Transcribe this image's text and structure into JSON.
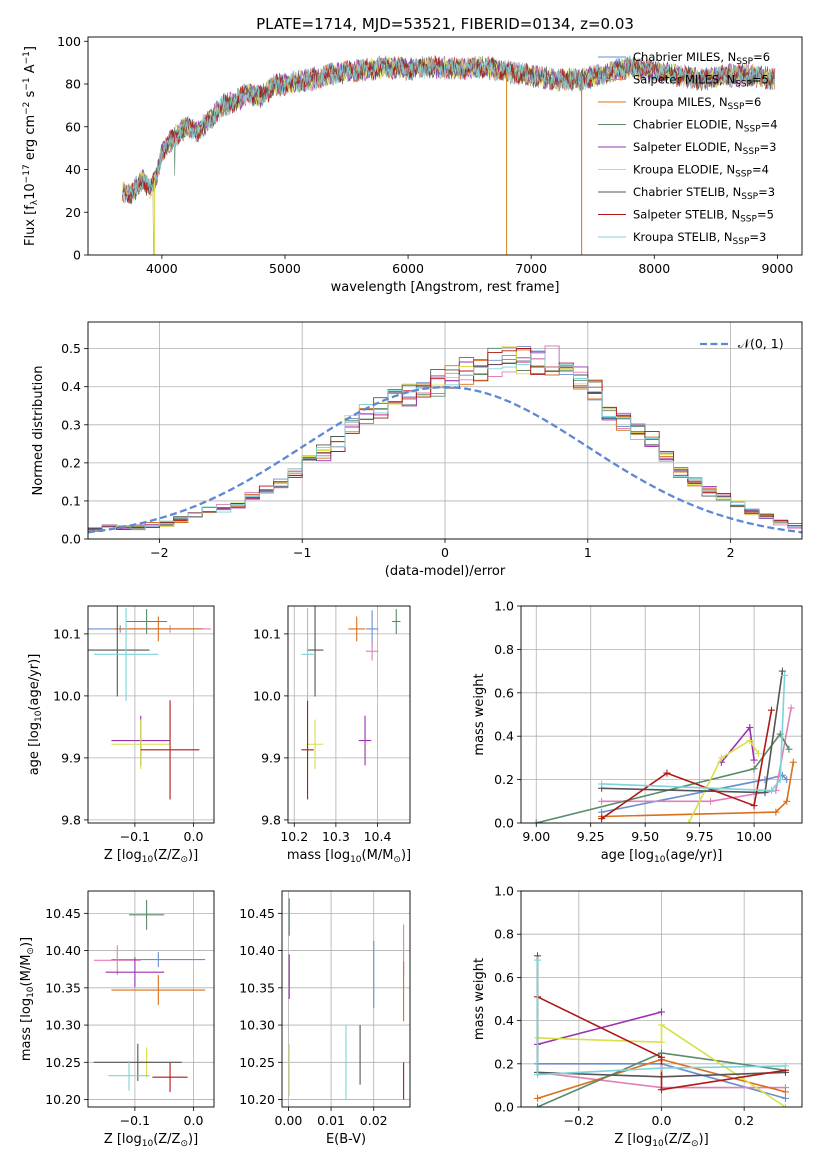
{
  "colors": {
    "chabrier_miles": "#6a8fd0",
    "salpeter_miles": "#e07fb8",
    "kroupa_miles": "#d9701e",
    "chabrier_elodie": "#5a8a6a",
    "salpeter_elodie": "#9b30b0",
    "kroupa_elodie": "#d8e04a",
    "chabrier_stelib": "#555555",
    "salpeter_stelib": "#b01818",
    "kroupa_stelib": "#7dd3d8",
    "gauss": "#5f87d4"
  },
  "chart_data": [
    {
      "id": "spectrum",
      "type": "line",
      "title": "PLATE=1714, MJD=53521, FIBERID=0134, z=0.03",
      "xlabel": "wavelength [Angstrom, rest frame]",
      "ylabel": "Flux [f",
      "ylabel_sub": "λ",
      "ylabel_mid": "10",
      "ylabel_sup1": "−17",
      "ylabel_mid2": " erg cm",
      "ylabel_sup2": "−2",
      "ylabel_mid3": " s",
      "ylabel_sup3": "−1",
      "ylabel_mid4": " A",
      "ylabel_sup4": "−1",
      "ylabel_end": "]",
      "xlim": [
        3400,
        9200
      ],
      "ylim": [
        0,
        102
      ],
      "xticks": [
        4000,
        5000,
        6000,
        7000,
        8000,
        9000
      ],
      "yticks": [
        0,
        20,
        40,
        60,
        80,
        100
      ],
      "envelope": {
        "x": [
          3680,
          3750,
          3850,
          3900,
          3950,
          4000,
          4100,
          4200,
          4300,
          4400,
          4500,
          4600,
          4700,
          4800,
          4900,
          5000,
          5200,
          5400,
          5600,
          5800,
          6000,
          6200,
          6400,
          6600,
          6800,
          7000,
          7200,
          7400,
          7600,
          7800,
          8000,
          8200,
          8400,
          8600,
          8800,
          8980
        ],
        "y": [
          30,
          28,
          36,
          30,
          35,
          48,
          55,
          60,
          58,
          64,
          70,
          72,
          76,
          74,
          79,
          80,
          82,
          85,
          86,
          88,
          87,
          88,
          87,
          88,
          86,
          84,
          82,
          82,
          85,
          88,
          86,
          84,
          82,
          84,
          84,
          82
        ]
      },
      "legend": [
        {
          "label": "Chabrier MILES, N",
          "color": "chabrier_miles",
          "n": "6"
        },
        {
          "label": "Salpeter MILES, N",
          "color": "salpeter_miles",
          "n": "5"
        },
        {
          "label": "Kroupa MILES, N",
          "color": "kroupa_miles",
          "n": "6"
        },
        {
          "label": "Chabrier ELODIE, N",
          "color": "chabrier_elodie",
          "n": "4"
        },
        {
          "label": "Salpeter ELODIE, N",
          "color": "salpeter_elodie",
          "n": "3"
        },
        {
          "label": "Kroupa ELODIE, N",
          "color": "kroupa_elodie",
          "n": "4"
        },
        {
          "label": "Chabrier STELIB, N",
          "color": "chabrier_stelib",
          "n": "3"
        },
        {
          "label": "Salpeter STELIB, N",
          "color": "salpeter_stelib",
          "n": "5"
        },
        {
          "label": "Kroupa STELIB, N",
          "color": "kroupa_stelib",
          "n": "3"
        }
      ],
      "legend_sub": "SSP",
      "legend_eq": "="
    },
    {
      "id": "residuals",
      "type": "histogram",
      "xlabel": "(data-model)/error",
      "ylabel": "Normed distribution",
      "xlim": [
        -2.5,
        2.5
      ],
      "ylim": [
        0,
        0.57
      ],
      "xticks": [
        -2,
        -1,
        0,
        1,
        2
      ],
      "yticks": [
        0.0,
        0.1,
        0.2,
        0.3,
        0.4,
        0.5
      ],
      "bin_width": 0.1,
      "bin_start": -2.5,
      "heights": [
        0.025,
        0.03,
        0.03,
        0.03,
        0.035,
        0.04,
        0.05,
        0.065,
        0.075,
        0.08,
        0.09,
        0.11,
        0.125,
        0.145,
        0.17,
        0.2,
        0.225,
        0.25,
        0.3,
        0.33,
        0.345,
        0.36,
        0.375,
        0.39,
        0.41,
        0.42,
        0.44,
        0.45,
        0.46,
        0.47,
        0.47,
        0.47,
        0.47,
        0.44,
        0.42,
        0.39,
        0.33,
        0.31,
        0.285,
        0.26,
        0.215,
        0.18,
        0.15,
        0.125,
        0.11,
        0.09,
        0.07,
        0.06,
        0.045,
        0.035
      ],
      "legend": "𝒩(0, 1)"
    },
    {
      "id": "age-vs-Z",
      "type": "errorbar",
      "xlabel": "Z [log",
      "xlabel_sub": "10",
      "xlabel_rest": "(Z/Z",
      "xlabel_sun": "⊙",
      "xlabel_end": ")]",
      "ylabel": "age  [log",
      "ylabel_sub": "10",
      "ylabel_rest": "(age/yr)]",
      "xlim": [
        -0.18,
        0.035
      ],
      "ylim": [
        9.795,
        10.145
      ],
      "xticks": [
        -0.1,
        0.0
      ],
      "yticks": [
        9.8,
        9.9,
        10.0,
        10.1
      ],
      "points": [
        {
          "x": -0.125,
          "y": 10.108,
          "xerr": 0.145,
          "yerr": 0.006,
          "color": "chabrier_miles"
        },
        {
          "x": -0.04,
          "y": 10.108,
          "xerr": 0.07,
          "yerr": 0.006,
          "color": "salpeter_miles"
        },
        {
          "x": -0.06,
          "y": 10.108,
          "xerr": 0.075,
          "yerr": 0.02,
          "color": "kroupa_miles"
        },
        {
          "x": -0.08,
          "y": 10.12,
          "xerr": 0.035,
          "yerr": 0.02,
          "color": "chabrier_elodie"
        },
        {
          "x": -0.09,
          "y": 9.928,
          "xerr": 0.05,
          "yerr": 0.04,
          "color": "salpeter_elodie"
        },
        {
          "x": -0.09,
          "y": 9.922,
          "xerr": 0.05,
          "yerr": 0.04,
          "color": "kroupa_elodie"
        },
        {
          "x": -0.13,
          "y": 10.074,
          "xerr": 0.055,
          "yerr": 0.075,
          "color": "chabrier_stelib"
        },
        {
          "x": -0.04,
          "y": 9.913,
          "xerr": 0.05,
          "yerr": 0.08,
          "color": "salpeter_stelib"
        },
        {
          "x": -0.115,
          "y": 10.067,
          "xerr": 0.055,
          "yerr": 0.075,
          "color": "kroupa_stelib"
        }
      ]
    },
    {
      "id": "age-vs-mass",
      "type": "errorbar",
      "xlabel": "mass [log",
      "xlabel_sub": "10",
      "xlabel_rest": "(M/M",
      "xlabel_sun": "⊙",
      "xlabel_end": ")]",
      "xlim": [
        10.185,
        10.478
      ],
      "ylim": [
        9.795,
        10.145
      ],
      "xticks": [
        10.2,
        10.3,
        10.4
      ],
      "yticks": [
        9.8,
        9.9,
        10.0,
        10.1
      ],
      "points": [
        {
          "x": 10.387,
          "y": 10.108,
          "xerr": 0.015,
          "yerr": 0.03,
          "color": "chabrier_miles"
        },
        {
          "x": 10.387,
          "y": 10.072,
          "xerr": 0.015,
          "yerr": 0.015,
          "color": "salpeter_miles"
        },
        {
          "x": 10.35,
          "y": 10.108,
          "xerr": 0.02,
          "yerr": 0.02,
          "color": "kroupa_miles"
        },
        {
          "x": 10.445,
          "y": 10.12,
          "xerr": 0.01,
          "yerr": 0.02,
          "color": "chabrier_elodie"
        },
        {
          "x": 10.37,
          "y": 9.928,
          "xerr": 0.015,
          "yerr": 0.04,
          "color": "salpeter_elodie"
        },
        {
          "x": 10.25,
          "y": 9.922,
          "xerr": 0.02,
          "yerr": 0.04,
          "color": "kroupa_elodie"
        },
        {
          "x": 10.25,
          "y": 10.074,
          "xerr": 0.02,
          "yerr": 0.075,
          "color": "chabrier_stelib"
        },
        {
          "x": 10.232,
          "y": 9.913,
          "xerr": 0.015,
          "yerr": 0.08,
          "color": "salpeter_stelib"
        },
        {
          "x": 10.232,
          "y": 10.067,
          "xerr": 0.015,
          "yerr": 0.075,
          "color": "kroupa_stelib"
        }
      ]
    },
    {
      "id": "weight-vs-age",
      "type": "line",
      "xlabel": "age  [log",
      "xlabel_sub": "10",
      "xlabel_rest": "(age/yr)]",
      "ylabel": "mass weight",
      "xlim": [
        8.93,
        10.22
      ],
      "ylim": [
        0,
        1
      ],
      "xticks": [
        9.0,
        9.25,
        9.5,
        9.75,
        10.0
      ],
      "yticks": [
        0.0,
        0.2,
        0.4,
        0.6,
        0.8,
        1.0
      ],
      "series": [
        {
          "color": "chabrier_miles",
          "x": [
            9.3,
            10.05,
            10.13,
            10.15
          ],
          "y": [
            0.05,
            0.2,
            0.22,
            0.2
          ]
        },
        {
          "color": "salpeter_miles",
          "x": [
            9.3,
            9.8,
            10.1,
            10.17
          ],
          "y": [
            0.1,
            0.1,
            0.15,
            0.53
          ]
        },
        {
          "color": "kroupa_miles",
          "x": [
            9.3,
            10.1,
            10.15,
            10.18
          ],
          "y": [
            0.03,
            0.05,
            0.1,
            0.28
          ]
        },
        {
          "color": "chabrier_elodie",
          "x": [
            9.0,
            10.0,
            10.12,
            10.16
          ],
          "y": [
            0.0,
            0.25,
            0.41,
            0.34
          ]
        },
        {
          "color": "salpeter_elodie",
          "x": [
            9.85,
            9.98,
            10.0
          ],
          "y": [
            0.28,
            0.44,
            0.29
          ]
        },
        {
          "color": "kroupa_elodie",
          "x": [
            9.7,
            9.85,
            9.98,
            10.02
          ],
          "y": [
            0.0,
            0.3,
            0.38,
            0.32
          ]
        },
        {
          "color": "chabrier_stelib",
          "x": [
            9.3,
            10.05,
            10.13
          ],
          "y": [
            0.16,
            0.14,
            0.7
          ]
        },
        {
          "color": "salpeter_stelib",
          "x": [
            9.3,
            9.6,
            10.0,
            10.08
          ],
          "y": [
            0.02,
            0.23,
            0.08,
            0.52
          ]
        },
        {
          "color": "kroupa_stelib",
          "x": [
            9.3,
            10.08,
            10.12,
            10.14
          ],
          "y": [
            0.18,
            0.15,
            0.2,
            0.68
          ]
        }
      ]
    },
    {
      "id": "mass-vs-Z",
      "type": "errorbar",
      "xlabel": "Z [log",
      "xlabel_sub": "10",
      "xlabel_rest": "(Z/Z",
      "xlabel_sun": "⊙",
      "xlabel_end": ")]",
      "ylabel": "mass [log",
      "ylabel_sub": "10",
      "ylabel_rest": "(M/M",
      "ylabel_sun": "⊙",
      "ylabel_end": ")]",
      "xlim": [
        -0.18,
        0.035
      ],
      "ylim": [
        10.19,
        10.48
      ],
      "xticks": [
        -0.1,
        0.0
      ],
      "yticks": [
        10.2,
        10.25,
        10.3,
        10.35,
        10.4,
        10.45
      ],
      "points": [
        {
          "x": -0.06,
          "y": 10.388,
          "xerr": 0.08,
          "yerr": 0.01,
          "color": "chabrier_miles"
        },
        {
          "x": -0.13,
          "y": 10.387,
          "xerr": 0.04,
          "yerr": 0.02,
          "color": "salpeter_miles"
        },
        {
          "x": -0.06,
          "y": 10.347,
          "xerr": 0.08,
          "yerr": 0.02,
          "color": "kroupa_miles"
        },
        {
          "x": -0.08,
          "y": 10.448,
          "xerr": 0.03,
          "yerr": 0.02,
          "color": "chabrier_elodie"
        },
        {
          "x": -0.1,
          "y": 10.371,
          "xerr": 0.05,
          "yerr": 0.02,
          "color": "salpeter_elodie"
        },
        {
          "x": -0.08,
          "y": 10.25,
          "xerr": 0.01,
          "yerr": 0.02,
          "color": "kroupa_elodie"
        },
        {
          "x": -0.095,
          "y": 10.25,
          "xerr": 0.075,
          "yerr": 0.025,
          "color": "chabrier_stelib"
        },
        {
          "x": -0.04,
          "y": 10.23,
          "xerr": 0.03,
          "yerr": 0.02,
          "color": "salpeter_stelib"
        },
        {
          "x": -0.11,
          "y": 10.232,
          "xerr": 0.035,
          "yerr": 0.02,
          "color": "kroupa_stelib"
        }
      ]
    },
    {
      "id": "mass-vs-ebv",
      "type": "errorbar",
      "xlabel": "E(B-V)",
      "xlim": [
        -0.0015,
        0.0285
      ],
      "ylim": [
        10.19,
        10.48
      ],
      "xticks": [
        0.0,
        0.01,
        0.02
      ],
      "yticks": [
        10.2,
        10.25,
        10.3,
        10.35,
        10.4,
        10.45
      ],
      "points": [
        {
          "x": 0.02,
          "y": 10.368,
          "xerr": 0,
          "yerr": 0.045,
          "color": "chabrier_miles"
        },
        {
          "x": 0.027,
          "y": 10.4,
          "xerr": 0,
          "yerr": 0.035,
          "color": "salpeter_miles"
        },
        {
          "x": 0.027,
          "y": 10.345,
          "xerr": 0,
          "yerr": 0.04,
          "color": "kroupa_miles"
        },
        {
          "x": 0.0002,
          "y": 10.445,
          "xerr": 0,
          "yerr": 0.025,
          "color": "chabrier_elodie"
        },
        {
          "x": 0.0002,
          "y": 10.365,
          "xerr": 0,
          "yerr": 0.03,
          "color": "salpeter_elodie"
        },
        {
          "x": 0.0002,
          "y": 10.24,
          "xerr": 0,
          "yerr": 0.035,
          "color": "kroupa_elodie"
        },
        {
          "x": 0.0168,
          "y": 10.26,
          "xerr": 0,
          "yerr": 0.04,
          "color": "chabrier_stelib"
        },
        {
          "x": 0.027,
          "y": 10.225,
          "xerr": 0,
          "yerr": 0.025,
          "color": "salpeter_stelib"
        },
        {
          "x": 0.0135,
          "y": 10.25,
          "xerr": 0,
          "yerr": 0.05,
          "color": "kroupa_stelib"
        }
      ]
    },
    {
      "id": "weight-vs-Z",
      "type": "line",
      "xlabel": "Z [log",
      "xlabel_sub": "10",
      "xlabel_rest": "(Z/Z",
      "xlabel_sun": "⊙",
      "xlabel_end": ")]",
      "ylabel": "mass weight",
      "xlim": [
        -0.34,
        0.34
      ],
      "ylim": [
        0,
        1
      ],
      "xticks": [
        -0.2,
        0.0,
        0.2
      ],
      "yticks": [
        0.0,
        0.2,
        0.4,
        0.6,
        0.8,
        1.0
      ],
      "series": [
        {
          "color": "chabrier_miles",
          "x": [
            -0.3,
            0.0,
            0.3
          ],
          "y": [
            0.2,
            0.2,
            0.04
          ]
        },
        {
          "color": "salpeter_miles",
          "x": [
            -0.3,
            0.0,
            0.3
          ],
          "y": [
            0.16,
            0.09,
            0.09
          ]
        },
        {
          "color": "kroupa_miles",
          "x": [
            -0.3,
            0.0,
            0.3
          ],
          "y": [
            0.04,
            0.22,
            0.07
          ]
        },
        {
          "color": "chabrier_elodie",
          "x": [
            -0.3,
            0.0,
            0.3
          ],
          "y": [
            0.0,
            0.25,
            0.17
          ]
        },
        {
          "color": "salpeter_elodie",
          "x": [
            -0.3,
            0.0
          ],
          "y": [
            0.29,
            0.44
          ]
        },
        {
          "color": "kroupa_elodie",
          "x": [
            -0.3,
            0.0,
            0.0,
            0.3
          ],
          "y": [
            0.32,
            0.3,
            0.38,
            0.0
          ]
        },
        {
          "color": "chabrier_stelib",
          "x": [
            -0.3,
            -0.3,
            0.0,
            0.3
          ],
          "y": [
            0.7,
            0.16,
            0.14,
            0.16
          ]
        },
        {
          "color": "salpeter_stelib",
          "x": [
            -0.3,
            0.0,
            0.0,
            0.3
          ],
          "y": [
            0.51,
            0.23,
            0.08,
            0.17
          ]
        },
        {
          "color": "kroupa_stelib",
          "x": [
            -0.3,
            -0.3,
            0.0,
            0.3
          ],
          "y": [
            0.68,
            0.15,
            0.18,
            0.19
          ]
        }
      ]
    }
  ]
}
